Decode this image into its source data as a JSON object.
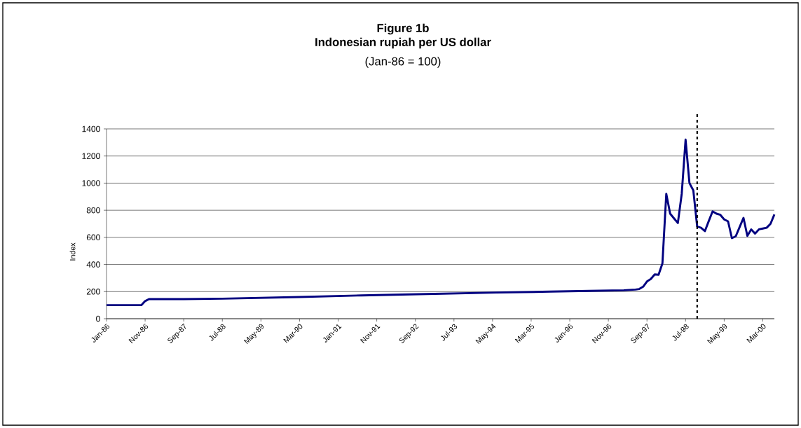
{
  "chart_data": {
    "type": "line",
    "title": "Figure 1b\nIndonesian rupiah per US dollar",
    "subtitle": "(Jan-86 = 100)",
    "ylabel": "Index",
    "x": [
      "1986-01",
      "1986-10",
      "1986-11",
      "1986-12",
      "1987-09",
      "1988-07",
      "1990-03",
      "1991-07",
      "1993-02",
      "1994-06",
      "1995-08",
      "1996-06",
      "1997-03",
      "1997-06",
      "1997-07",
      "1997-08",
      "1997-09",
      "1997-10",
      "1997-11",
      "1997-12",
      "1998-01",
      "1998-02",
      "1998-03",
      "1998-04",
      "1998-05",
      "1998-06",
      "1998-07",
      "1998-08",
      "1998-09",
      "1998-10",
      "1998-11",
      "1998-12",
      "1999-01",
      "1999-02",
      "1999-03",
      "1999-04",
      "1999-05",
      "1999-06",
      "1999-07",
      "1999-08",
      "1999-09",
      "1999-10",
      "1999-11",
      "1999-12",
      "2000-01",
      "2000-02",
      "2000-03",
      "2000-04",
      "2000-05",
      "2000-06"
    ],
    "series": [
      {
        "color": "#000080",
        "values": [
          100,
          100,
          130,
          145,
          145,
          148,
          160,
          172,
          183,
          193,
          200,
          205,
          210,
          215,
          219,
          236,
          275,
          293,
          327,
          324,
          408,
          921,
          775,
          740,
          706,
          921,
          1321,
          1000,
          947,
          680,
          671,
          646,
          720,
          792,
          775,
          766,
          732,
          718,
          594,
          608,
          676,
          744,
          611,
          659,
          628,
          659,
          665,
          671,
          700,
          769
        ]
      }
    ],
    "xlim": [
      "1986-01",
      "2000-06"
    ],
    "xticks": [
      {
        "value": "1986-01",
        "label": "Jan-86"
      },
      {
        "value": "1986-11",
        "label": "Nov-86"
      },
      {
        "value": "1987-09",
        "label": "Sep-87"
      },
      {
        "value": "1988-07",
        "label": "Jul-88"
      },
      {
        "value": "1989-05",
        "label": "May-89"
      },
      {
        "value": "1990-03",
        "label": "Mar-90"
      },
      {
        "value": "1991-01",
        "label": "Jan-91"
      },
      {
        "value": "1991-11",
        "label": "Nov-91"
      },
      {
        "value": "1992-09",
        "label": "Sep-92"
      },
      {
        "value": "1993-07",
        "label": "Jul-93"
      },
      {
        "value": "1994-05",
        "label": "May-94"
      },
      {
        "value": "1995-03",
        "label": "Mar-95"
      },
      {
        "value": "1996-01",
        "label": "Jan-96"
      },
      {
        "value": "1996-11",
        "label": "Nov-96"
      },
      {
        "value": "1997-09",
        "label": "Sep-97"
      },
      {
        "value": "1998-07",
        "label": "Jul-98"
      },
      {
        "value": "1999-05",
        "label": "May-99"
      },
      {
        "value": "2000-03",
        "label": "Mar-00"
      }
    ],
    "ylim": [
      0,
      1400
    ],
    "yticks": [
      0,
      200,
      400,
      600,
      800,
      1000,
      1200,
      1400
    ],
    "grid": "y",
    "line_style": "solid",
    "marker": "none",
    "ref_lines": [
      {
        "axis": "x",
        "value": "1998-10",
        "color": "#000000",
        "line_style": "dashed"
      }
    ]
  }
}
